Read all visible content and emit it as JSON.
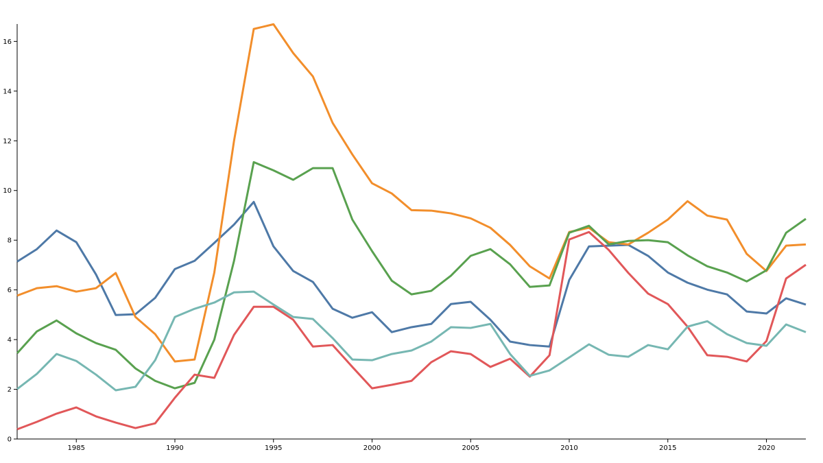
{
  "chart_data": {
    "type": "line",
    "x": [
      1982,
      1983,
      1984,
      1985,
      1986,
      1987,
      1988,
      1989,
      1990,
      1991,
      1992,
      1993,
      1994,
      1995,
      1996,
      1997,
      1998,
      1999,
      2000,
      2001,
      2002,
      2003,
      2004,
      2005,
      2006,
      2007,
      2008,
      2009,
      2010,
      2011,
      2012,
      2013,
      2014,
      2015,
      2016,
      2017,
      2018,
      2019,
      2020,
      2021,
      2022
    ],
    "series": [
      {
        "color": "#4e79a7",
        "values": [
          7.14,
          7.64,
          8.39,
          7.92,
          6.62,
          4.99,
          5.02,
          5.68,
          6.84,
          7.17,
          7.89,
          8.63,
          9.54,
          7.75,
          6.76,
          6.32,
          5.24,
          4.88,
          5.1,
          4.3,
          4.5,
          4.63,
          5.43,
          5.52,
          4.8,
          3.92,
          3.78,
          3.72,
          6.4,
          7.75,
          7.78,
          7.81,
          7.37,
          6.7,
          6.29,
          6.01,
          5.82,
          5.13,
          5.05,
          5.66,
          5.41
        ]
      },
      {
        "color": "#f28e2b",
        "values": [
          5.77,
          6.07,
          6.15,
          5.93,
          6.07,
          6.68,
          4.91,
          4.22,
          3.12,
          3.2,
          6.7,
          12.0,
          16.5,
          16.69,
          15.53,
          14.59,
          12.72,
          11.45,
          10.29,
          9.88,
          9.21,
          9.19,
          9.08,
          8.88,
          8.5,
          7.81,
          6.95,
          6.46,
          8.33,
          8.5,
          7.92,
          7.83,
          8.3,
          8.83,
          9.57,
          8.99,
          8.83,
          7.45,
          6.76,
          7.78,
          7.83
        ]
      },
      {
        "color": "#59a14f",
        "values": [
          3.45,
          4.33,
          4.77,
          4.25,
          3.86,
          3.59,
          2.84,
          2.34,
          2.04,
          2.26,
          4.0,
          7.17,
          11.14,
          10.81,
          10.43,
          10.9,
          10.9,
          8.83,
          7.56,
          6.37,
          5.82,
          5.96,
          6.57,
          7.37,
          7.64,
          7.03,
          6.12,
          6.18,
          8.3,
          8.58,
          7.83,
          7.97,
          8.0,
          7.92,
          7.39,
          6.95,
          6.7,
          6.34,
          6.79,
          8.3,
          8.86
        ]
      },
      {
        "color": "#e15759",
        "values": [
          0.39,
          0.69,
          1.02,
          1.27,
          0.91,
          0.66,
          0.44,
          0.63,
          1.66,
          2.59,
          2.46,
          4.19,
          5.32,
          5.32,
          4.8,
          3.72,
          3.78,
          2.9,
          2.04,
          2.18,
          2.34,
          3.09,
          3.53,
          3.42,
          2.9,
          3.23,
          2.51,
          3.37,
          8.03,
          8.33,
          7.61,
          6.68,
          5.85,
          5.43,
          4.52,
          3.37,
          3.31,
          3.12,
          3.94,
          6.46,
          7.01
        ]
      },
      {
        "color": "#76b7b2",
        "values": [
          2.01,
          2.62,
          3.42,
          3.14,
          2.59,
          1.96,
          2.1,
          3.17,
          4.91,
          5.24,
          5.49,
          5.9,
          5.93,
          5.41,
          4.91,
          4.83,
          4.06,
          3.2,
          3.17,
          3.42,
          3.56,
          3.92,
          4.5,
          4.47,
          4.63,
          3.42,
          2.54,
          2.76,
          3.28,
          3.81,
          3.39,
          3.31,
          3.78,
          3.61,
          4.52,
          4.74,
          4.22,
          3.86,
          3.75,
          4.61,
          4.3
        ]
      }
    ],
    "xlim": [
      1982,
      2022
    ],
    "xticks": [
      1985,
      1990,
      1995,
      2000,
      2005,
      2010,
      2015,
      2020
    ],
    "ylim": [
      0,
      16.7
    ],
    "yticks": [
      0,
      2,
      4,
      6,
      8,
      10,
      12,
      14,
      16
    ]
  }
}
